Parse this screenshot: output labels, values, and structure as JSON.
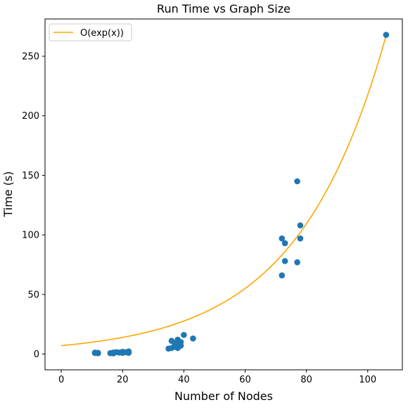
{
  "chart_data": {
    "type": "scatter",
    "title": "Run Time vs Graph Size",
    "xlabel": "Number of Nodes",
    "ylabel": "Time (s)",
    "xlim": [
      -5.3,
      111.3
    ],
    "ylim": [
      -13.3,
      281.3
    ],
    "xticks": [
      0,
      20,
      40,
      60,
      80,
      100
    ],
    "yticks": [
      0,
      50,
      100,
      150,
      200,
      250
    ],
    "grid": false,
    "legend_position": "top-left",
    "series": [
      {
        "kind": "line",
        "name": "O(exp(x))",
        "color": "#ffa500",
        "formula": "7 * exp(x / 29.1)",
        "x_range": [
          0,
          106
        ]
      },
      {
        "kind": "scatter",
        "color": "#1f77b4",
        "points": [
          [
            11,
            0.8
          ],
          [
            12,
            1.0
          ],
          [
            12,
            0.6
          ],
          [
            11,
            1.2
          ],
          [
            16,
            0.7
          ],
          [
            17,
            1.2
          ],
          [
            18,
            1.5
          ],
          [
            19,
            1.2
          ],
          [
            20,
            1.8
          ],
          [
            21,
            1.4
          ],
          [
            22,
            2.2
          ],
          [
            22,
            1.0
          ],
          [
            17,
            0.5
          ],
          [
            20,
            1.0
          ],
          [
            35,
            4.5
          ],
          [
            36,
            5.0
          ],
          [
            36,
            11.0
          ],
          [
            37,
            6.0
          ],
          [
            38,
            12.0
          ],
          [
            38,
            5.0
          ],
          [
            39,
            10.0
          ],
          [
            39,
            7.0
          ],
          [
            37,
            9.0
          ],
          [
            38,
            8.0
          ],
          [
            40,
            16.0
          ],
          [
            43,
            13.0
          ],
          [
            72,
            97
          ],
          [
            72,
            66
          ],
          [
            73,
            93
          ],
          [
            73,
            78
          ],
          [
            77,
            145
          ],
          [
            77,
            77
          ],
          [
            78,
            108
          ],
          [
            78,
            97
          ],
          [
            106,
            268
          ]
        ]
      }
    ]
  }
}
